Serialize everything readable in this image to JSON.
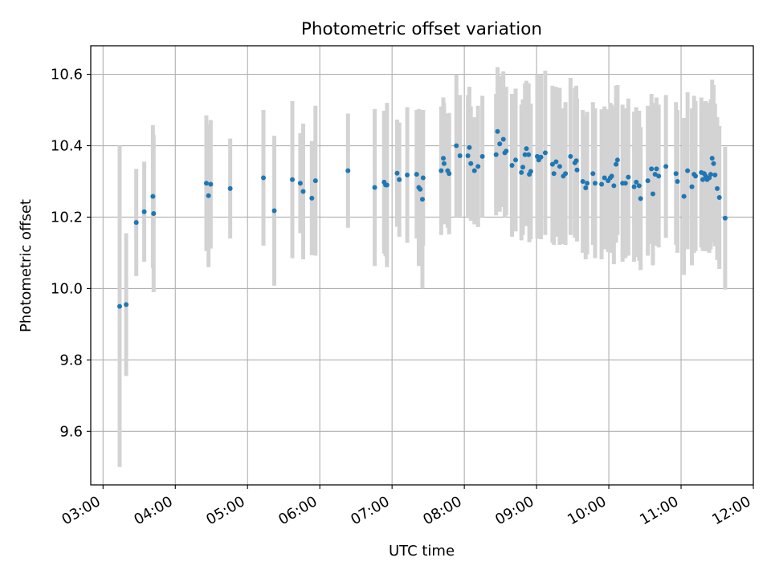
{
  "chart_data": {
    "type": "scatter",
    "title": "Photometric offset variation",
    "xlabel": "UTC time",
    "ylabel": "Photometric offset",
    "x_tick_labels": [
      "03:00",
      "04:00",
      "05:00",
      "06:00",
      "07:00",
      "08:00",
      "09:00",
      "10:00",
      "11:00",
      "12:00"
    ],
    "y_tick_labels": [
      "9.6",
      "9.8",
      "10.0",
      "10.2",
      "10.4",
      "10.6"
    ],
    "x_ticks_hours": [
      3,
      4,
      5,
      6,
      7,
      8,
      9,
      10,
      11,
      12
    ],
    "y_ticks": [
      9.6,
      9.8,
      10.0,
      10.2,
      10.4,
      10.6
    ],
    "xlim_hours": [
      2.83,
      12.0
    ],
    "ylim": [
      9.45,
      10.68
    ],
    "grid": true,
    "errorbar_color": "#d3d3d3",
    "point_color": "#1f77b4",
    "series": [
      {
        "points": [
          {
            "t": 3.23,
            "y": 9.95,
            "err": 0.45
          },
          {
            "t": 3.32,
            "y": 9.955,
            "err": 0.2
          },
          {
            "t": 3.46,
            "y": 10.185,
            "err": 0.15
          },
          {
            "t": 3.57,
            "y": 10.215,
            "err": 0.14
          },
          {
            "t": 3.69,
            "y": 10.258,
            "err": 0.2
          },
          {
            "t": 3.7,
            "y": 10.21,
            "err": 0.22
          },
          {
            "t": 4.43,
            "y": 10.295,
            "err": 0.19
          },
          {
            "t": 4.46,
            "y": 10.26,
            "err": 0.2
          },
          {
            "t": 4.49,
            "y": 10.292,
            "err": 0.18
          },
          {
            "t": 4.76,
            "y": 10.28,
            "err": 0.14
          },
          {
            "t": 5.22,
            "y": 10.31,
            "err": 0.19
          },
          {
            "t": 5.37,
            "y": 10.218,
            "err": 0.21
          },
          {
            "t": 5.62,
            "y": 10.305,
            "err": 0.22
          },
          {
            "t": 5.73,
            "y": 10.295,
            "err": 0.14
          },
          {
            "t": 5.77,
            "y": 10.272,
            "err": 0.19
          },
          {
            "t": 5.89,
            "y": 10.253,
            "err": 0.16
          },
          {
            "t": 5.94,
            "y": 10.302,
            "err": 0.21
          },
          {
            "t": 6.39,
            "y": 10.33,
            "err": 0.16
          },
          {
            "t": 6.76,
            "y": 10.283,
            "err": 0.22
          },
          {
            "t": 6.89,
            "y": 10.298,
            "err": 0.2
          },
          {
            "t": 6.91,
            "y": 10.29,
            "err": 0.2
          },
          {
            "t": 6.93,
            "y": 10.29,
            "err": 0.23
          },
          {
            "t": 7.07,
            "y": 10.323,
            "err": 0.15
          },
          {
            "t": 7.1,
            "y": 10.305,
            "err": 0.16
          },
          {
            "t": 7.21,
            "y": 10.318,
            "err": 0.19
          },
          {
            "t": 7.34,
            "y": 10.32,
            "err": 0.18
          },
          {
            "t": 7.37,
            "y": 10.283,
            "err": 0.22
          },
          {
            "t": 7.39,
            "y": 10.278,
            "err": 0.21
          },
          {
            "t": 7.42,
            "y": 10.25,
            "err": 0.25
          },
          {
            "t": 7.43,
            "y": 10.31,
            "err": 0.19
          },
          {
            "t": 7.68,
            "y": 10.33,
            "err": 0.18
          },
          {
            "t": 7.71,
            "y": 10.365,
            "err": 0.17
          },
          {
            "t": 7.72,
            "y": 10.35,
            "err": 0.17
          },
          {
            "t": 7.77,
            "y": 10.33,
            "err": 0.16
          },
          {
            "t": 7.79,
            "y": 10.322,
            "err": 0.17
          },
          {
            "t": 7.89,
            "y": 10.4,
            "err": 0.2
          },
          {
            "t": 7.94,
            "y": 10.372,
            "err": 0.17
          },
          {
            "t": 8.05,
            "y": 10.372,
            "err": 0.17
          },
          {
            "t": 8.07,
            "y": 10.395,
            "err": 0.17
          },
          {
            "t": 8.09,
            "y": 10.35,
            "err": 0.16
          },
          {
            "t": 8.14,
            "y": 10.33,
            "err": 0.15
          },
          {
            "t": 8.19,
            "y": 10.342,
            "err": 0.17
          },
          {
            "t": 8.25,
            "y": 10.37,
            "err": 0.17
          },
          {
            "t": 8.44,
            "y": 10.375,
            "err": 0.17
          },
          {
            "t": 8.46,
            "y": 10.44,
            "err": 0.18
          },
          {
            "t": 8.49,
            "y": 10.405,
            "err": 0.19
          },
          {
            "t": 8.54,
            "y": 10.418,
            "err": 0.19
          },
          {
            "t": 8.56,
            "y": 10.38,
            "err": 0.18
          },
          {
            "t": 8.58,
            "y": 10.385,
            "err": 0.18
          },
          {
            "t": 8.66,
            "y": 10.345,
            "err": 0.2
          },
          {
            "t": 8.71,
            "y": 10.36,
            "err": 0.2
          },
          {
            "t": 8.79,
            "y": 10.325,
            "err": 0.19
          },
          {
            "t": 8.81,
            "y": 10.34,
            "err": 0.19
          },
          {
            "t": 8.84,
            "y": 10.375,
            "err": 0.2
          },
          {
            "t": 8.86,
            "y": 10.392,
            "err": 0.19
          },
          {
            "t": 8.89,
            "y": 10.375,
            "err": 0.2
          },
          {
            "t": 8.9,
            "y": 10.32,
            "err": 0.19
          },
          {
            "t": 8.92,
            "y": 10.328,
            "err": 0.19
          },
          {
            "t": 9.01,
            "y": 10.37,
            "err": 0.23
          },
          {
            "t": 9.03,
            "y": 10.36,
            "err": 0.22
          },
          {
            "t": 9.06,
            "y": 10.368,
            "err": 0.23
          },
          {
            "t": 9.12,
            "y": 10.38,
            "err": 0.23
          },
          {
            "t": 9.22,
            "y": 10.348,
            "err": 0.22
          },
          {
            "t": 9.24,
            "y": 10.322,
            "err": 0.2
          },
          {
            "t": 9.27,
            "y": 10.355,
            "err": 0.21
          },
          {
            "t": 9.32,
            "y": 10.342,
            "err": 0.22
          },
          {
            "t": 9.37,
            "y": 10.315,
            "err": 0.19
          },
          {
            "t": 9.4,
            "y": 10.322,
            "err": 0.2
          },
          {
            "t": 9.47,
            "y": 10.37,
            "err": 0.22
          },
          {
            "t": 9.53,
            "y": 10.352,
            "err": 0.21
          },
          {
            "t": 9.55,
            "y": 10.358,
            "err": 0.21
          },
          {
            "t": 9.56,
            "y": 10.332,
            "err": 0.2
          },
          {
            "t": 9.64,
            "y": 10.3,
            "err": 0.2
          },
          {
            "t": 9.68,
            "y": 10.282,
            "err": 0.2
          },
          {
            "t": 9.7,
            "y": 10.295,
            "err": 0.2
          },
          {
            "t": 9.78,
            "y": 10.322,
            "err": 0.2
          },
          {
            "t": 9.81,
            "y": 10.295,
            "err": 0.21
          },
          {
            "t": 9.9,
            "y": 10.292,
            "err": 0.21
          },
          {
            "t": 9.94,
            "y": 10.31,
            "err": 0.2
          },
          {
            "t": 9.99,
            "y": 10.302,
            "err": 0.2
          },
          {
            "t": 10.02,
            "y": 10.31,
            "err": 0.21
          },
          {
            "t": 10.04,
            "y": 10.315,
            "err": 0.2
          },
          {
            "t": 10.07,
            "y": 10.288,
            "err": 0.22
          },
          {
            "t": 10.1,
            "y": 10.348,
            "err": 0.22
          },
          {
            "t": 10.12,
            "y": 10.36,
            "err": 0.21
          },
          {
            "t": 10.19,
            "y": 10.295,
            "err": 0.22
          },
          {
            "t": 10.23,
            "y": 10.295,
            "err": 0.21
          },
          {
            "t": 10.27,
            "y": 10.312,
            "err": 0.22
          },
          {
            "t": 10.35,
            "y": 10.285,
            "err": 0.21
          },
          {
            "t": 10.38,
            "y": 10.298,
            "err": 0.21
          },
          {
            "t": 10.42,
            "y": 10.288,
            "err": 0.21
          },
          {
            "t": 10.44,
            "y": 10.252,
            "err": 0.2
          },
          {
            "t": 10.54,
            "y": 10.302,
            "err": 0.21
          },
          {
            "t": 10.59,
            "y": 10.335,
            "err": 0.21
          },
          {
            "t": 10.61,
            "y": 10.265,
            "err": 0.2
          },
          {
            "t": 10.64,
            "y": 10.32,
            "err": 0.2
          },
          {
            "t": 10.66,
            "y": 10.335,
            "err": 0.2
          },
          {
            "t": 10.69,
            "y": 10.315,
            "err": 0.2
          },
          {
            "t": 10.79,
            "y": 10.342,
            "err": 0.2
          },
          {
            "t": 10.93,
            "y": 10.322,
            "err": 0.2
          },
          {
            "t": 10.95,
            "y": 10.3,
            "err": 0.2
          },
          {
            "t": 11.04,
            "y": 10.258,
            "err": 0.22
          },
          {
            "t": 11.09,
            "y": 10.33,
            "err": 0.22
          },
          {
            "t": 11.15,
            "y": 10.285,
            "err": 0.22
          },
          {
            "t": 11.18,
            "y": 10.32,
            "err": 0.22
          },
          {
            "t": 11.2,
            "y": 10.315,
            "err": 0.21
          },
          {
            "t": 11.28,
            "y": 10.325,
            "err": 0.21
          },
          {
            "t": 11.3,
            "y": 10.305,
            "err": 0.2
          },
          {
            "t": 11.32,
            "y": 10.322,
            "err": 0.2
          },
          {
            "t": 11.34,
            "y": 10.315,
            "err": 0.21
          },
          {
            "t": 11.36,
            "y": 10.305,
            "err": 0.2
          },
          {
            "t": 11.39,
            "y": 10.31,
            "err": 0.21
          },
          {
            "t": 11.41,
            "y": 10.32,
            "err": 0.21
          },
          {
            "t": 11.43,
            "y": 10.365,
            "err": 0.22
          },
          {
            "t": 11.45,
            "y": 10.35,
            "err": 0.22
          },
          {
            "t": 11.47,
            "y": 10.318,
            "err": 0.2
          },
          {
            "t": 11.5,
            "y": 10.28,
            "err": 0.2
          },
          {
            "t": 11.53,
            "y": 10.255,
            "err": 0.2
          },
          {
            "t": 11.61,
            "y": 10.197,
            "err": 0.2
          }
        ]
      }
    ]
  }
}
